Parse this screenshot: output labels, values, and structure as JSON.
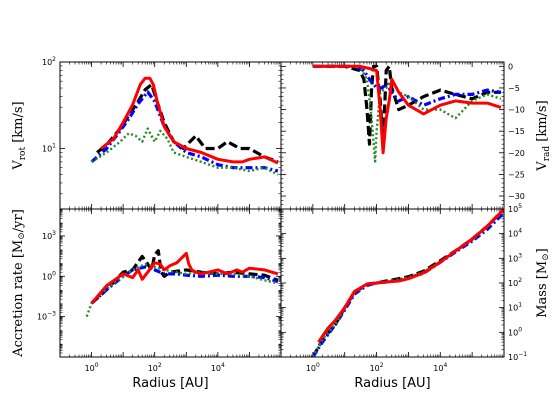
{
  "figure": {
    "xlabel": "Radius [AU]",
    "line_styles": [
      {
        "color": "#000000",
        "dash": "dashed",
        "width": 3.2
      },
      {
        "color": "#0000ff",
        "dash": "dashdot",
        "width": 3.2
      },
      {
        "color": "#228b22",
        "dash": "dotted",
        "width": 2.4
      },
      {
        "color": "#ff0000",
        "dash": "solid",
        "width": 3.0
      }
    ]
  },
  "chart_data": [
    {
      "type": "line",
      "panel": "top-left",
      "ylabel": "V_rot [km/s]",
      "ylabel_parts": [
        "V",
        "rot",
        " [km/s]"
      ],
      "xscale": "log",
      "yscale": "log",
      "xlim": [
        0.1,
        1000000
      ],
      "ylim": [
        2,
        100
      ],
      "yticks": [
        {
          "value": 10,
          "label": "10",
          "sup": "1"
        },
        {
          "value": 100,
          "label": "10",
          "sup": "2"
        }
      ],
      "series": [
        {
          "x": [
            1.5,
            3,
            8,
            15,
            30,
            50,
            80,
            110,
            200,
            400,
            800,
            2000,
            4000,
            10000,
            20000,
            50000,
            100000,
            300000,
            800000
          ],
          "y": [
            9,
            11,
            17,
            24,
            35,
            48,
            55,
            38,
            20,
            12,
            10,
            14,
            10,
            10,
            12,
            10,
            10,
            8,
            7
          ]
        },
        {
          "x": [
            1,
            3,
            8,
            15,
            30,
            60,
            100,
            200,
            400,
            1000,
            3000,
            10000,
            30000,
            100000,
            300000,
            800000
          ],
          "y": [
            7,
            10,
            16,
            22,
            33,
            45,
            35,
            18,
            12,
            9,
            8,
            6.5,
            6,
            6,
            6,
            5.5
          ]
        },
        {
          "x": [
            1,
            3,
            8,
            15,
            25,
            40,
            60,
            100,
            150,
            250,
            400,
            1000,
            3000,
            10000,
            30000,
            100000,
            300000,
            800000
          ],
          "y": [
            7,
            9,
            12,
            15,
            14,
            12,
            17,
            12,
            16,
            13,
            9,
            8,
            7,
            6,
            6,
            5.5,
            6,
            5
          ]
        },
        {
          "x": [
            2,
            5,
            10,
            20,
            35,
            50,
            70,
            90,
            120,
            200,
            400,
            1000,
            3000,
            10000,
            30000,
            60000,
            100000,
            300000,
            800000
          ],
          "y": [
            10,
            13,
            20,
            32,
            55,
            65,
            65,
            55,
            35,
            18,
            12,
            10,
            9,
            7.5,
            7,
            7,
            7.5,
            8,
            6.8
          ]
        }
      ]
    },
    {
      "type": "line",
      "panel": "top-right",
      "ylabel": "V_rad [km/s]",
      "ylabel_parts": [
        "V",
        "rad",
        " [km/s]"
      ],
      "xscale": "log",
      "yscale": "linear",
      "xlim": [
        0.1,
        1000000
      ],
      "ylim": [
        -33,
        1
      ],
      "yticks": [
        {
          "value": 0,
          "label": "0"
        },
        {
          "value": -5,
          "label": "−5"
        },
        {
          "value": -10,
          "label": "−10"
        },
        {
          "value": -15,
          "label": "−15"
        },
        {
          "value": -20,
          "label": "−20"
        },
        {
          "value": -25,
          "label": "−25"
        },
        {
          "value": -30,
          "label": "−30"
        }
      ],
      "series": [
        {
          "x": [
            1,
            10,
            30,
            40,
            50,
            60,
            70,
            80,
            100,
            130,
            160,
            200,
            250,
            300,
            500,
            1000,
            3000,
            10000,
            30000,
            100000,
            300000,
            800000
          ],
          "y": [
            0,
            0,
            -1,
            -3,
            -10,
            -18,
            -5,
            0,
            0,
            -8,
            -18,
            -1,
            0,
            -5,
            -10,
            -9,
            -7,
            -5.5,
            -6.5,
            -7.5,
            -6,
            -6
          ]
        },
        {
          "x": [
            1,
            10,
            20,
            40,
            60,
            100,
            150,
            200,
            300,
            500,
            1000,
            3000,
            10000,
            30000,
            100000,
            300000,
            800000
          ],
          "y": [
            0,
            0,
            0,
            -1,
            -3,
            -5,
            -5,
            -4,
            -6,
            -8,
            -7,
            -9,
            -7.5,
            -6.5,
            -6.5,
            -5.5,
            -6
          ]
        },
        {
          "x": [
            1,
            10,
            30,
            50,
            70,
            90,
            100,
            130,
            200,
            300,
            500,
            1000,
            3000,
            10000,
            30000,
            100000,
            300000,
            800000
          ],
          "y": [
            0,
            0,
            0,
            -3,
            -12,
            -22,
            -15,
            -6,
            -5,
            -3,
            -6,
            -7,
            -10,
            -10,
            -12,
            -8,
            -6.5,
            -7.5
          ]
        },
        {
          "x": [
            1,
            10,
            30,
            60,
            100,
            130,
            160,
            200,
            250,
            300,
            500,
            1000,
            3000,
            10000,
            30000,
            100000,
            300000,
            800000
          ],
          "y": [
            0,
            0,
            0,
            -0.5,
            -1,
            -10,
            -20,
            -12,
            -8,
            -3,
            -6,
            -9,
            -11,
            -9,
            -8,
            -8.5,
            -8.5,
            -9.5
          ]
        }
      ]
    },
    {
      "type": "line",
      "panel": "bottom-left",
      "ylabel": "Accretion rate [M☉/yr]",
      "ylabel_parts": [
        "Accretion rate [M",
        "⊙",
        "/yr]"
      ],
      "xscale": "log",
      "yscale": "log",
      "xlim": [
        0.1,
        1000000
      ],
      "ylim": [
        1e-06,
        100000
      ],
      "yticks": [
        {
          "value": 0.001,
          "label": "10",
          "sup": "−3"
        },
        {
          "value": 1,
          "label": "10",
          "sup": "0"
        },
        {
          "value": 1000,
          "label": "10",
          "sup": "3"
        }
      ],
      "series": [
        {
          "x": [
            1,
            3,
            10,
            20,
            40,
            60,
            80,
            100,
            130,
            160,
            200,
            300,
            1000,
            3000,
            10000,
            30000,
            100000,
            300000,
            800000
          ],
          "y": [
            0.01,
            0.1,
            2,
            3,
            30,
            8,
            3,
            40,
            80,
            2,
            1,
            2,
            3,
            2,
            1.5,
            2,
            1.5,
            1.2,
            0.5
          ]
        },
        {
          "x": [
            1,
            3,
            10,
            20,
            50,
            100,
            200,
            500,
            1000,
            3000,
            10000,
            30000,
            100000,
            300000,
            800000
          ],
          "y": [
            0.01,
            0.1,
            1,
            3,
            5,
            3,
            1.5,
            1.5,
            1.2,
            1,
            1.2,
            1,
            1,
            0.8,
            0.4
          ]
        },
        {
          "x": [
            0.7,
            1,
            2,
            5,
            10,
            20,
            50,
            100,
            200,
            500,
            1000,
            3000,
            10000,
            30000,
            100000,
            300000,
            800000
          ],
          "y": [
            0.001,
            0.01,
            0.05,
            0.3,
            1,
            3,
            8,
            5,
            3,
            2,
            1.5,
            2,
            1.5,
            1.5,
            1,
            0.5,
            0.3
          ]
        },
        {
          "x": [
            1,
            3,
            10,
            20,
            30,
            40,
            60,
            100,
            150,
            200,
            300,
            500,
            800,
            1000,
            1200,
            1500,
            2000,
            3000,
            5000,
            10000,
            20000,
            40000,
            60000,
            100000,
            300000,
            800000
          ],
          "y": [
            0.01,
            0.2,
            1.5,
            0.8,
            3,
            0.6,
            2,
            10,
            8,
            3,
            6,
            10,
            30,
            50,
            8,
            3,
            2,
            1.5,
            2,
            3,
            1.5,
            3,
            2,
            4,
            3,
            1.5
          ]
        }
      ]
    },
    {
      "type": "line",
      "panel": "bottom-right",
      "ylabel": "Mass [M☉]",
      "ylabel_parts": [
        "Mass [M",
        "⊙",
        "]"
      ],
      "xscale": "log",
      "yscale": "log",
      "xlim": [
        0.1,
        1000000
      ],
      "ylim": [
        0.1,
        100000
      ],
      "yticks": [
        {
          "value": 0.1,
          "label": "10",
          "sup": "−1"
        },
        {
          "value": 1,
          "label": "10",
          "sup": "0"
        },
        {
          "value": 10,
          "label": "10",
          "sup": "1"
        },
        {
          "value": 100,
          "label": "10",
          "sup": "2"
        },
        {
          "value": 1000,
          "label": "10",
          "sup": "3"
        },
        {
          "value": 10000,
          "label": "10",
          "sup": "4"
        },
        {
          "value": 100000,
          "label": "10",
          "sup": "5"
        }
      ],
      "series": [
        {
          "x": [
            1,
            2,
            5,
            10,
            20,
            50,
            100,
            200,
            500,
            1000,
            3000,
            10000,
            30000,
            100000,
            300000,
            1000000
          ],
          "y": [
            0.1,
            0.5,
            2,
            10,
            40,
            90,
            100,
            120,
            150,
            180,
            300,
            800,
            2000,
            6000,
            20000,
            100000
          ]
        },
        {
          "x": [
            1,
            2,
            5,
            10,
            20,
            50,
            100,
            200,
            500,
            1000,
            3000,
            10000,
            30000,
            100000,
            300000,
            1000000
          ],
          "y": [
            0.1,
            0.4,
            2,
            8,
            35,
            80,
            100,
            110,
            130,
            160,
            250,
            700,
            1800,
            5000,
            15000,
            70000
          ]
        },
        {
          "x": [
            1,
            2,
            5,
            10,
            20,
            50,
            100,
            200,
            500,
            1000,
            3000,
            10000,
            30000,
            100000,
            300000,
            1000000
          ],
          "y": [
            0.1,
            0.5,
            2,
            9,
            40,
            85,
            95,
            110,
            140,
            170,
            280,
            750,
            1900,
            5500,
            18000,
            90000
          ]
        },
        {
          "x": [
            1.5,
            3,
            5,
            10,
            20,
            50,
            100,
            200,
            500,
            1000,
            3000,
            10000,
            30000,
            100000,
            300000,
            1000000
          ],
          "y": [
            0.4,
            1.5,
            3,
            10,
            45,
            90,
            100,
            110,
            120,
            150,
            260,
            700,
            2000,
            6000,
            20000,
            100000
          ]
        }
      ]
    }
  ]
}
